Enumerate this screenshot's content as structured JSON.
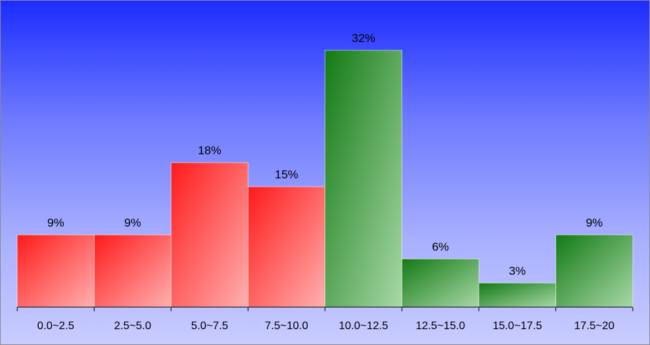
{
  "chart_data": {
    "type": "bar",
    "categories": [
      "0.0~2.5",
      "2.5~5.0",
      "5.0~7.5",
      "7.5~10.0",
      "10.0~12.5",
      "12.5~15.0",
      "15.0~17.5",
      "17.5~20"
    ],
    "values": [
      9,
      9,
      18,
      15,
      32,
      6,
      3,
      9
    ],
    "data_labels": [
      "9%",
      "9%",
      "18%",
      "15%",
      "32%",
      "6%",
      "3%",
      "9%"
    ],
    "title": "",
    "xlabel": "",
    "ylabel": "",
    "ylim": [
      0,
      32
    ],
    "grid": false,
    "legend": "none",
    "bar_colors": [
      "red",
      "red",
      "red",
      "red",
      "green",
      "green",
      "green",
      "green"
    ],
    "colors": {
      "red_start": "#ff1a1a",
      "red_end": "#ffb0b0",
      "green_start": "#137a13",
      "green_end": "#a8d8a8",
      "background_top": "#1c2cff",
      "background_bottom": "#c8ccff",
      "axis": "#000000"
    }
  }
}
